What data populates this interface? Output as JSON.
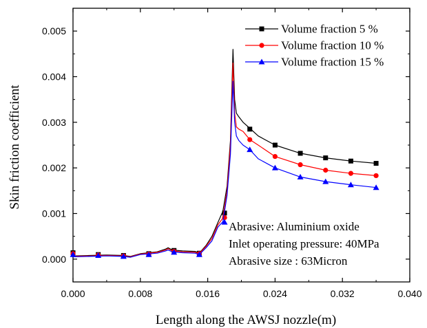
{
  "chart_data": {
    "type": "line",
    "xlabel": "Length along the AWSJ nozzle(m)",
    "ylabel": "Skin friction coefficient",
    "xlim": [
      0.0,
      0.04
    ],
    "ylim": [
      -0.0005,
      0.0055
    ],
    "x_ticks": [
      "0.000",
      "0.008",
      "0.016",
      "0.024",
      "0.032",
      "0.040"
    ],
    "x_tick_values": [
      0.0,
      0.008,
      0.016,
      0.024,
      0.032,
      0.04
    ],
    "y_ticks": [
      "0.000",
      "0.001",
      "0.002",
      "0.003",
      "0.004",
      "0.005"
    ],
    "y_tick_values": [
      0.0,
      0.001,
      0.002,
      0.003,
      0.004,
      0.005
    ],
    "grid": false,
    "legend_position": "top-right",
    "series": [
      {
        "name": "Volume fraction 5 %",
        "color": "#000000",
        "marker": "square",
        "x": [
          0.0,
          0.002,
          0.004,
          0.006,
          0.0068,
          0.008,
          0.01,
          0.011,
          0.0113,
          0.0118,
          0.013,
          0.0145,
          0.015,
          0.0158,
          0.0165,
          0.0172,
          0.0178,
          0.0183,
          0.0187,
          0.019,
          0.0192,
          0.0194,
          0.0197,
          0.0202,
          0.021,
          0.022,
          0.024,
          0.027,
          0.03,
          0.033,
          0.036
        ],
        "y": [
          7e-05,
          8e-05,
          9e-05,
          8e-05,
          6e-05,
          0.00012,
          0.00016,
          0.00022,
          0.00025,
          0.0002,
          0.00018,
          0.00017,
          0.00013,
          0.0003,
          0.0005,
          0.0008,
          0.00105,
          0.0016,
          0.0026,
          0.0046,
          0.0035,
          0.0032,
          0.00312,
          0.003,
          0.00287,
          0.0027,
          0.0025,
          0.00232,
          0.00222,
          0.00215,
          0.0021
        ],
        "marker_x": [
          0.0,
          0.003,
          0.006,
          0.009,
          0.012,
          0.015,
          0.018,
          0.021,
          0.024,
          0.027,
          0.03,
          0.033,
          0.036
        ],
        "marker_y": [
          0.00014,
          0.0001,
          8e-05,
          0.00012,
          0.00019,
          0.00013,
          0.00101,
          0.00285,
          0.0025,
          0.00232,
          0.00222,
          0.00215,
          0.0021
        ]
      },
      {
        "name": "Volume fraction 10 %",
        "color": "#ff0000",
        "marker": "circle",
        "x": [
          0.0,
          0.002,
          0.004,
          0.006,
          0.0068,
          0.008,
          0.01,
          0.011,
          0.0113,
          0.0118,
          0.013,
          0.0145,
          0.015,
          0.0158,
          0.0165,
          0.0172,
          0.0178,
          0.0183,
          0.0187,
          0.019,
          0.0192,
          0.0194,
          0.0197,
          0.0202,
          0.021,
          0.022,
          0.024,
          0.027,
          0.03,
          0.033,
          0.036
        ],
        "y": [
          6e-05,
          7e-05,
          8e-05,
          7e-05,
          5e-05,
          0.00011,
          0.00015,
          0.0002,
          0.00023,
          0.00018,
          0.00016,
          0.00015,
          0.00012,
          0.00028,
          0.00045,
          0.00075,
          0.0009,
          0.0015,
          0.0025,
          0.0043,
          0.0032,
          0.0029,
          0.00285,
          0.0028,
          0.00262,
          0.0025,
          0.00225,
          0.00207,
          0.00195,
          0.00188,
          0.00183
        ],
        "marker_x": [
          0.0,
          0.003,
          0.006,
          0.009,
          0.012,
          0.015,
          0.018,
          0.021,
          0.024,
          0.027,
          0.03,
          0.033,
          0.036
        ],
        "marker_y": [
          0.00012,
          9e-05,
          7e-05,
          0.00011,
          0.00017,
          0.00012,
          0.00091,
          0.00262,
          0.00225,
          0.00207,
          0.00195,
          0.00188,
          0.00183
        ]
      },
      {
        "name": "Volume fraction 15 %",
        "color": "#0000ff",
        "marker": "triangle",
        "x": [
          0.0,
          0.002,
          0.004,
          0.006,
          0.0068,
          0.008,
          0.01,
          0.011,
          0.0113,
          0.0118,
          0.013,
          0.0145,
          0.015,
          0.0158,
          0.0165,
          0.0172,
          0.0178,
          0.0183,
          0.0187,
          0.019,
          0.0192,
          0.0194,
          0.0197,
          0.0202,
          0.021,
          0.022,
          0.024,
          0.027,
          0.03,
          0.033,
          0.036
        ],
        "y": [
          5e-05,
          6e-05,
          7e-05,
          6e-05,
          4e-05,
          0.0001,
          0.00013,
          0.00018,
          0.0002,
          0.00016,
          0.00014,
          0.00013,
          0.0001,
          0.00025,
          0.0004,
          0.0007,
          0.00082,
          0.0014,
          0.0023,
          0.0039,
          0.003,
          0.0027,
          0.0026,
          0.0025,
          0.0024,
          0.0022,
          0.002,
          0.0018,
          0.0017,
          0.00163,
          0.00157
        ],
        "marker_x": [
          0.0,
          0.003,
          0.006,
          0.009,
          0.012,
          0.015,
          0.018,
          0.021,
          0.024,
          0.027,
          0.03,
          0.033,
          0.036
        ],
        "marker_y": [
          0.0001,
          8e-05,
          6e-05,
          0.0001,
          0.00015,
          0.0001,
          0.00081,
          0.0024,
          0.002,
          0.0018,
          0.0017,
          0.00163,
          0.00157
        ]
      }
    ],
    "annotations": [
      "Abrasive: Aluminium oxide",
      "Inlet operating pressure: 40MPa",
      "Abrasive size : 63Micron"
    ]
  }
}
